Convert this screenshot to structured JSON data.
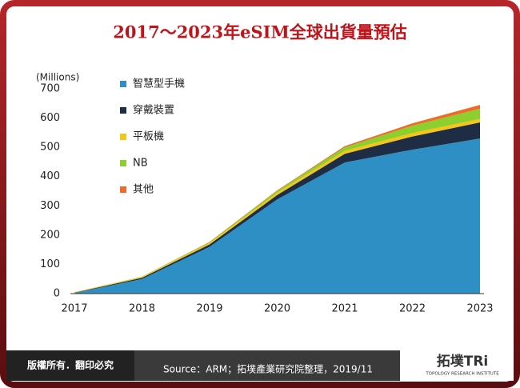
{
  "chart_data": {
    "type": "stacked-area",
    "title": "2017～2023年eSIM全球出貨量預估",
    "y_label": "(Millions)",
    "categories": [
      "2017",
      "2018",
      "2019",
      "2020",
      "2021",
      "2022",
      "2023"
    ],
    "series": [
      {
        "name": "智慧型手機",
        "color": "#2e8fc4",
        "values": [
          2,
          50,
          160,
          322,
          448,
          492,
          530
        ]
      },
      {
        "name": "穿戴裝置",
        "color": "#1f2d44",
        "values": [
          1,
          4,
          8,
          15,
          30,
          45,
          55
        ]
      },
      {
        "name": "平板機",
        "color": "#f5c518",
        "values": [
          2,
          3,
          5,
          8,
          10,
          12,
          12
        ]
      },
      {
        "name": "NB",
        "color": "#8ccf2e",
        "values": [
          0,
          1,
          3,
          6,
          12,
          25,
          35
        ]
      },
      {
        "name": "其他",
        "color": "#f06a2a",
        "values": [
          0,
          0,
          1,
          2,
          4,
          8,
          13
        ]
      }
    ],
    "ylim": [
      0,
      700
    ],
    "yticks": [
      0,
      100,
      200,
      300,
      400,
      500,
      600,
      700
    ]
  },
  "footer": {
    "copyright": "版權所有．翻印必究",
    "source": "Source：ARM；拓墣產業研究院整理，2019/11",
    "logo": "拓墣TRi",
    "logo_sub": "TOPOLOGY RESEARCH INSTITUTE"
  }
}
